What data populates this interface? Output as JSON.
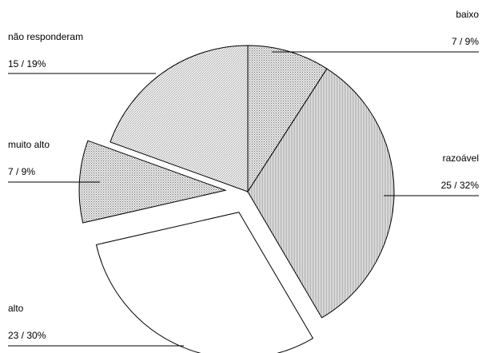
{
  "chart_data": {
    "type": "pie",
    "title": "",
    "start_angle_deg": 0,
    "direction": "clockwise",
    "slices": [
      {
        "name": "baixo",
        "value": 7,
        "percent": 9,
        "value_label": "7 / 9%",
        "exploded": false,
        "fill": "dots-dense"
      },
      {
        "name": "razoável",
        "value": 25,
        "percent": 32,
        "value_label": "25 / 32%",
        "exploded": false,
        "fill": "vertical-fine"
      },
      {
        "name": "alto",
        "value": 23,
        "percent": 30,
        "value_label": "23 / 30%",
        "exploded": true,
        "fill": "white"
      },
      {
        "name": "muito alto",
        "value": 7,
        "percent": 9,
        "value_label": "7 / 9%",
        "exploded": true,
        "fill": "dots-dense"
      },
      {
        "name": "não responderam",
        "value": 15,
        "percent": 19,
        "value_label": "15 / 19%",
        "exploded": false,
        "fill": "diagonal-fine"
      }
    ]
  }
}
